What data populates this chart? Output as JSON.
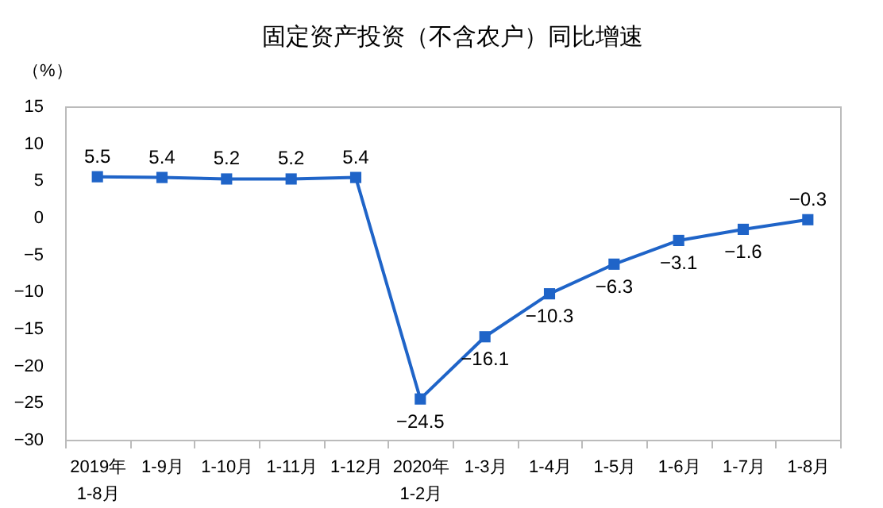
{
  "chart_data": {
    "type": "line",
    "title": "固定资产投资（不含农户）同比增速",
    "ylabel": "（%）",
    "categories": [
      "2019年\n1-8月",
      "1-9月",
      "1-10月",
      "1-11月",
      "1-12月",
      "2020年\n1-2月",
      "1-3月",
      "1-4月",
      "1-5月",
      "1-6月",
      "1-7月",
      "1-8月"
    ],
    "series": [
      {
        "color": "#1f64c8",
        "values": [
          5.5,
          5.4,
          5.2,
          5.2,
          5.4,
          -24.5,
          -16.1,
          -10.3,
          -6.3,
          -3.1,
          -1.6,
          -0.3
        ]
      }
    ],
    "ylim": [
      -30,
      15
    ],
    "yticks": [
      -30,
      -25,
      -20,
      -15,
      -10,
      -5,
      0,
      5,
      10,
      15
    ],
    "data_labels": true,
    "marker": "square",
    "grid": false
  }
}
